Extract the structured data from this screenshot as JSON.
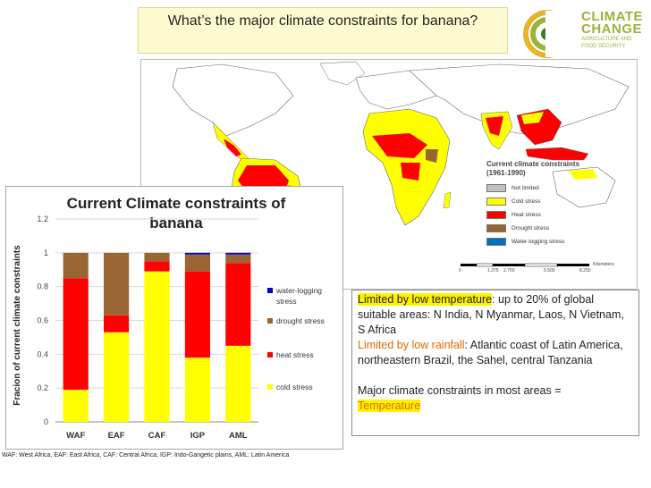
{
  "page": {
    "title": "What’s the major climate constraints for banana?"
  },
  "logo": {
    "line1": "CLIMATE",
    "line2": "CHANGE",
    "line3": "AGRICULTURE AND",
    "line4": "FOOD SECURITY"
  },
  "map": {
    "legend_title_1": "Current climate constraints",
    "legend_title_2": "(1961-1990)",
    "legend_items": [
      {
        "label": "Not limited",
        "color": "#bfbfbf"
      },
      {
        "label": "Cold stress",
        "color": "#ffff00"
      },
      {
        "label": "Heat stress",
        "color": "#ff0000"
      },
      {
        "label": "Drought stress",
        "color": "#996633"
      },
      {
        "label": "Water-logging stress",
        "color": "#0070c0"
      }
    ],
    "scale_ticks": [
      "0",
      "1,375",
      "2,750",
      "5,500",
      "8,250"
    ],
    "scale_unit": "Kilometers"
  },
  "chart_data": {
    "type": "bar",
    "stacked": true,
    "title_line1": "Current Climate constraints of",
    "title_line2": "banana",
    "ylabel": "Fracion of current climate constraints",
    "xlabel": "",
    "ylim": [
      0,
      1.2
    ],
    "yticks": [
      "0",
      "0.2",
      "0.4",
      "0.6",
      "0.8",
      "1",
      "1.2"
    ],
    "categories": [
      "WAF",
      "EAF",
      "CAF",
      "IGP",
      "AML"
    ],
    "series": [
      {
        "name": "cold stress",
        "color": "#ffff00",
        "values": [
          0.19,
          0.53,
          0.89,
          0.38,
          0.45
        ]
      },
      {
        "name": "heat stress",
        "color": "#ff0000",
        "values": [
          0.66,
          0.1,
          0.06,
          0.51,
          0.49
        ]
      },
      {
        "name": "drought stress",
        "color": "#996633",
        "values": [
          0.15,
          0.37,
          0.05,
          0.1,
          0.05
        ]
      },
      {
        "name": "water-logging stress",
        "color": "#0000cc",
        "values": [
          0.0,
          0.0,
          0.0,
          0.01,
          0.01
        ]
      }
    ],
    "legend_labels": [
      {
        "name": "water-logging",
        "name2": "stress",
        "color": "#0000cc"
      },
      {
        "name": "drought stress",
        "name2": "",
        "color": "#996633"
      },
      {
        "name": "heat stress",
        "name2": "",
        "color": "#ff0000"
      },
      {
        "name": "cold stress",
        "name2": "",
        "color": "#ffff00"
      }
    ]
  },
  "textbox": {
    "p1_label": "Limited by low temperature",
    "p1_text": ": up to 20% of global suitable areas:  N India, N Myanmar, Laos, N Vietnam, S Africa",
    "p2_label": "Limited by low rainfall",
    "p2_text": ": Atlantic coast of Latin America, northeastern Brazil, the Sahel, central Tanzania",
    "p3_text": "Major climate constraints in most areas =",
    "p3_highlight": "Temperature"
  },
  "footnote": "WAF: West Africa, EAF: East Africa, CAF: Central Africa, IGP: Indo-Gangetic plains, AML: Latin America"
}
